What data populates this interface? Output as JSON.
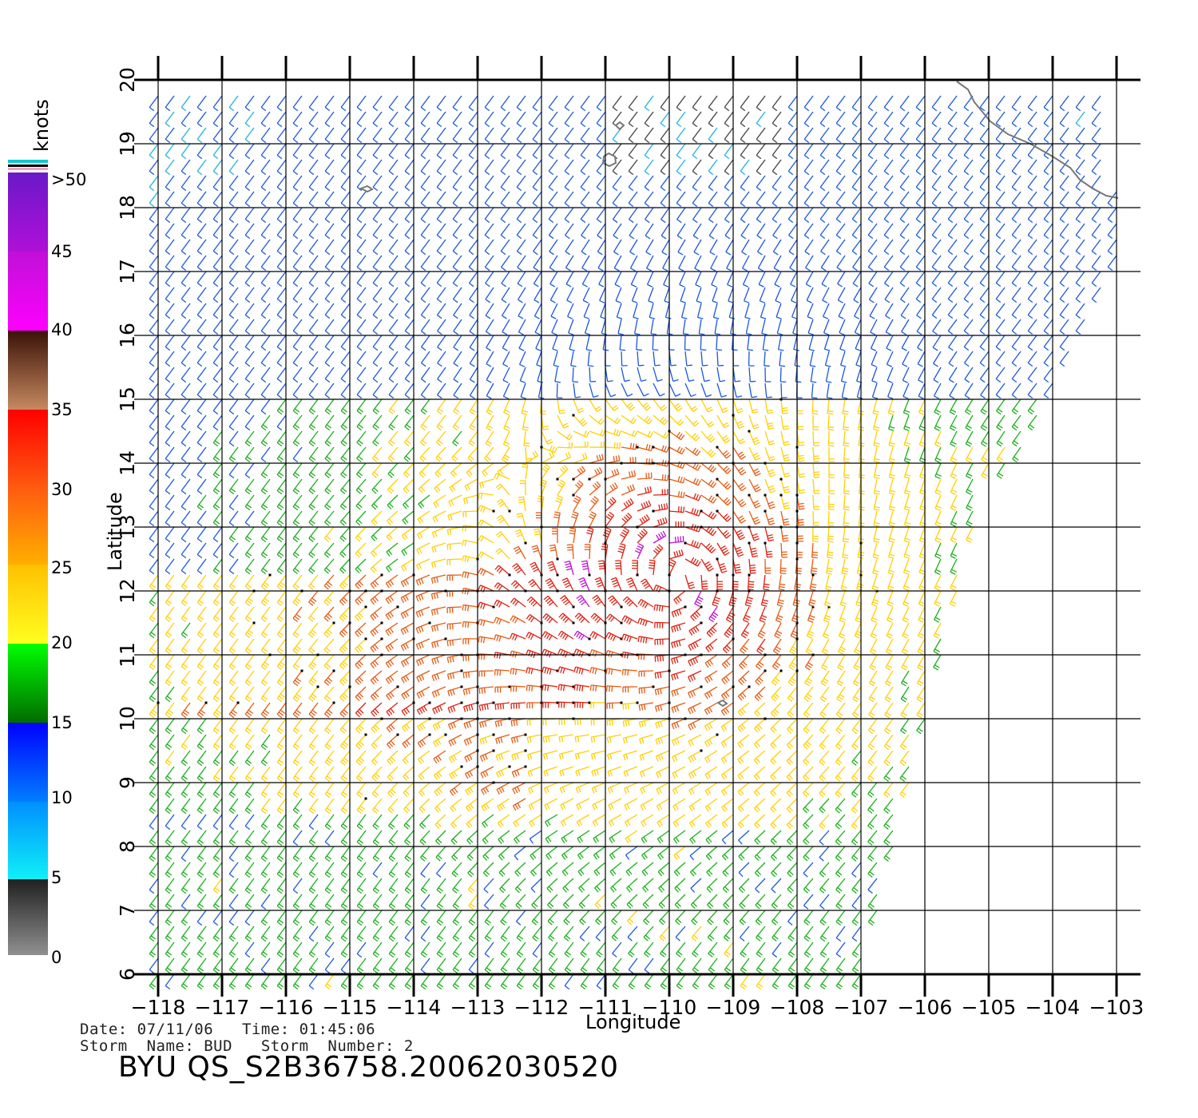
{
  "map": {
    "y_axis_label": "Latitude",
    "x_axis_label": "Longitude",
    "x_ticks": [
      "−118",
      "−117",
      "−116",
      "−115",
      "−114",
      "−113",
      "−112",
      "−111",
      "−110",
      "−109",
      "−108",
      "−107",
      "−106",
      "−105",
      "−104",
      "−103"
    ],
    "y_ticks": [
      "6",
      "7",
      "8",
      "9",
      "10",
      "11",
      "12",
      "13",
      "14",
      "15",
      "16",
      "17",
      "18",
      "19",
      "20"
    ],
    "lon_range": [
      -118,
      -103
    ],
    "lat_range": [
      6,
      20
    ]
  },
  "legend": {
    "unit": "knots",
    "labels": [
      ">50",
      "45",
      "40",
      "35",
      "30",
      "25",
      "20",
      "15",
      "10",
      "5",
      "0"
    ],
    "band_colors": [
      "#6a00c8",
      "#c000d0",
      "#6a2a18",
      "#ff2200",
      "#ffb000",
      "#10c010",
      "#0050ff",
      "#10d8f0",
      "#555555"
    ]
  },
  "footer": {
    "date_line": "Date: 07/11/06   Time: 01:45:06",
    "storm_line": "Storm  Name: BUD   Storm  Number: 2",
    "title": "BYU  QS_S2B36758.20062030520"
  },
  "storm_center": {
    "lon": -109.9,
    "lat": 12.2
  }
}
